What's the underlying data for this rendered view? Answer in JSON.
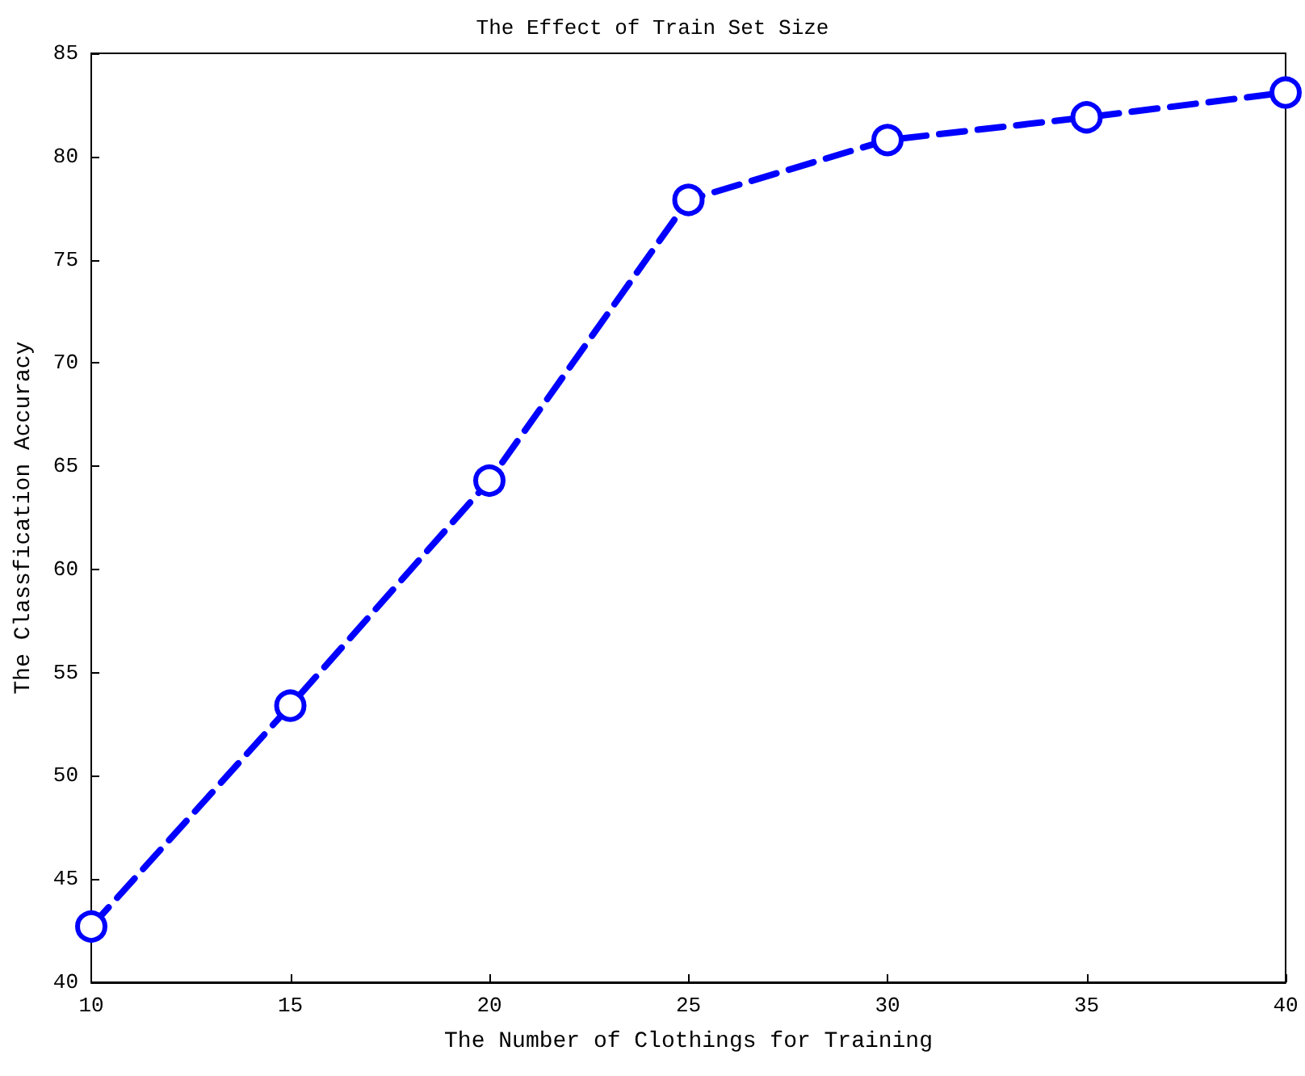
{
  "chart_data": {
    "type": "line",
    "title": "The Effect of Train Set Size",
    "xlabel": "The Number of Clothings for Training",
    "ylabel": "The Classfication Accuracy",
    "x": [
      10,
      15,
      20,
      25,
      30,
      35,
      40
    ],
    "series": [
      {
        "color": "#0000ff",
        "values": [
          42.7,
          53.4,
          64.3,
          77.9,
          80.8,
          81.9,
          83.1
        ]
      }
    ],
    "xlim": [
      10,
      40
    ],
    "xticks": [
      10,
      15,
      20,
      25,
      30,
      35,
      40
    ],
    "ylim": [
      40,
      85
    ],
    "yticks": [
      40,
      45,
      50,
      55,
      60,
      65,
      70,
      75,
      80,
      85
    ],
    "grid": false,
    "marker": "circle",
    "line_style": "dashed"
  }
}
